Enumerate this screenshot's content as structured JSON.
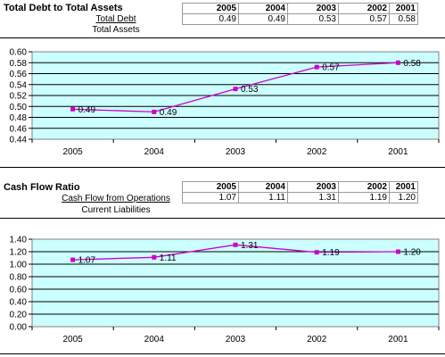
{
  "sections": [
    {
      "title": "Total Debt to Total Assets",
      "numerator": "Total Debt",
      "denominator": "Total Assets",
      "years": [
        "2005",
        "2004",
        "2003",
        "2002",
        "2001"
      ],
      "values": [
        "0.49",
        "0.49",
        "0.53",
        "0.57",
        "0.58"
      ]
    },
    {
      "title": "Cash Flow Ratio",
      "numerator": "Cash Flow from Operations",
      "denominator": "Current Liabilities",
      "years": [
        "2005",
        "2004",
        "2003",
        "2002",
        "2001"
      ],
      "values": [
        "1.07",
        "1.11",
        "1.31",
        "1.19",
        "1.20"
      ]
    }
  ],
  "chart_data": [
    {
      "type": "line",
      "categories": [
        "2005",
        "2004",
        "2003",
        "2002",
        "2001"
      ],
      "series": [
        {
          "values": [
            0.495,
            0.49,
            0.532,
            0.572,
            0.58
          ],
          "labels": [
            "0.49",
            "0.49",
            "0.53",
            "0.57",
            "0.58"
          ]
        }
      ],
      "ylim": [
        0.44,
        0.6
      ],
      "yticks": [
        "0.60",
        "0.58",
        "0.56",
        "0.54",
        "0.52",
        "0.50",
        "0.48",
        "0.46",
        "0.44"
      ],
      "grid": true,
      "plot_color": "#ccffff",
      "line_color": "#cc00cc"
    },
    {
      "type": "line",
      "categories": [
        "2005",
        "2004",
        "2003",
        "2002",
        "2001"
      ],
      "series": [
        {
          "values": [
            1.07,
            1.11,
            1.31,
            1.19,
            1.2
          ],
          "labels": [
            "1.07",
            "1.11",
            "1.31",
            "1.19",
            "1.20"
          ]
        }
      ],
      "ylim": [
        0.0,
        1.4
      ],
      "yticks": [
        "1.40",
        "1.20",
        "1.00",
        "0.80",
        "0.60",
        "0.40",
        "0.20",
        "0.00"
      ],
      "grid": true,
      "plot_color": "#ccffff",
      "line_color": "#cc00cc"
    }
  ]
}
